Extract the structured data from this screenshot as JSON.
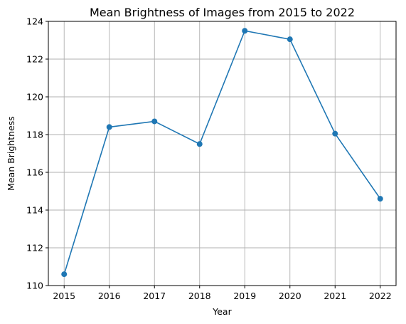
{
  "chart_data": {
    "type": "line",
    "title": "Mean Brightness of Images from 2015 to 2022",
    "xlabel": "Year",
    "ylabel": "Mean Brightness",
    "x": [
      2015,
      2016,
      2017,
      2018,
      2019,
      2020,
      2021,
      2022
    ],
    "series": [
      {
        "values": [
          110.6,
          118.4,
          118.7,
          117.5,
          123.5,
          123.05,
          118.05,
          114.6
        ],
        "color": "#1f77b4",
        "marker": "circle"
      }
    ],
    "xticks": [
      "2015",
      "2016",
      "2017",
      "2018",
      "2019",
      "2020",
      "2021",
      "2022"
    ],
    "yticks": [
      "110",
      "112",
      "114",
      "116",
      "118",
      "120",
      "122",
      "124"
    ],
    "ylim": [
      110,
      124
    ],
    "xlim": [
      2014.65,
      2022.35
    ],
    "grid": true,
    "legend": "none"
  }
}
